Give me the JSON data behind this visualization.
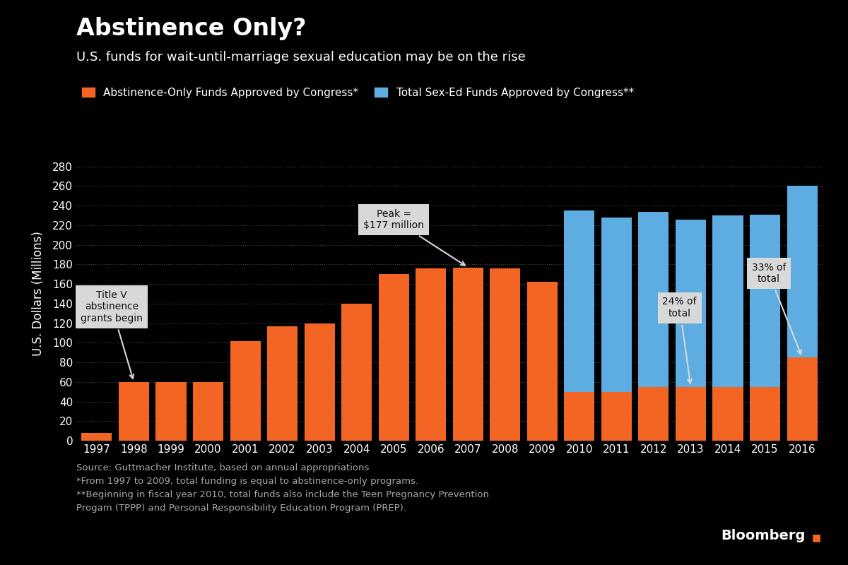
{
  "years": [
    1997,
    1998,
    1999,
    2000,
    2001,
    2002,
    2003,
    2004,
    2005,
    2006,
    2007,
    2008,
    2009,
    2010,
    2011,
    2012,
    2013,
    2014,
    2015,
    2016
  ],
  "abstinence_only": [
    8,
    60,
    60,
    60,
    102,
    117,
    120,
    140,
    170,
    176,
    177,
    176,
    162,
    50,
    50,
    55,
    55,
    55,
    55,
    85
  ],
  "total_sex_ed": [
    8,
    60,
    60,
    60,
    102,
    117,
    120,
    140,
    170,
    176,
    177,
    176,
    162,
    235,
    228,
    234,
    226,
    230,
    231,
    260
  ],
  "orange_color": "#F26522",
  "blue_color": "#5DADE2",
  "bg_color": "#000000",
  "text_color": "#ffffff",
  "grid_color": "#444444",
  "anno_box_color": "#d8d8d8",
  "anno_text_color": "#111111",
  "title": "Abstinence Only?",
  "subtitle": "U.S. funds for wait-until-marriage sexual education may be on the rise",
  "legend_label1": "Abstinence-Only Funds Approved by Congress*",
  "legend_label2": "Total Sex-Ed Funds Approved by Congress**",
  "ylabel": "U.S. Dollars (Millions)",
  "ylim": [
    0,
    300
  ],
  "yticks": [
    0,
    20,
    40,
    60,
    80,
    100,
    120,
    140,
    160,
    180,
    200,
    220,
    240,
    260,
    280
  ],
  "source_text": "Source: Guttmacher Institute, based on annual appropriations\n*From 1997 to 2009, total funding is equal to abstinence-only programs.\n**Beginning in fiscal year 2010, total funds also include the Teen Pregnancy Prevention\nProgam (TPPP) and Personal Responsibility Education Program (PREP)."
}
